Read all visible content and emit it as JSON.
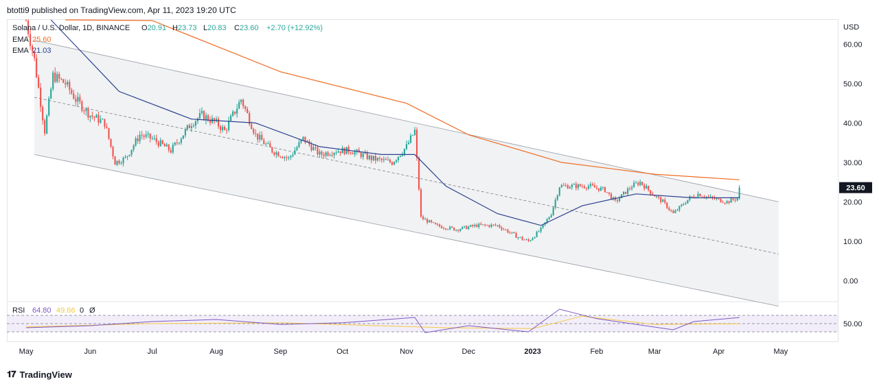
{
  "header": {
    "publisher_line": "btotti9 published on TradingView.com, Apr 11, 2023 19:20 UTC"
  },
  "legend": {
    "symbol": "Solana / U.S. Dollar, 1D, BINANCE",
    "ohlc": [
      {
        "key": "O",
        "value": "20.91"
      },
      {
        "key": "H",
        "value": "23.73"
      },
      {
        "key": "L",
        "value": "20.83"
      },
      {
        "key": "C",
        "value": "23.60"
      }
    ],
    "change": "+2.70 (+12.92%)",
    "indicators": [
      {
        "name": "EMA",
        "value": "25.60",
        "color": "#f06a20"
      },
      {
        "name": "EMA",
        "value": "21.03",
        "color": "#2a3f8f"
      }
    ],
    "rsi": {
      "name": "RSI",
      "value1": "64.80",
      "value2": "49.66",
      "value3": "0",
      "value4": "Ø"
    }
  },
  "colors": {
    "up": "#26a69a",
    "down": "#ef5350",
    "ema_long": "#f06a20",
    "ema_short": "#2a3f8f",
    "rsi_line": "#7e57c2",
    "rsi_ma": "#f5c842",
    "channel_fill": "#f0f2f3",
    "price_tag": "#131722"
  },
  "chart_data": [
    {
      "type": "candlestick",
      "currency": "USD",
      "price_axis": {
        "ticks": [
          "60.00",
          "50.00",
          "40.00",
          "30.00",
          "20.00",
          "10.00",
          "0.00"
        ],
        "ylim": [
          -5,
          66
        ]
      },
      "time_axis": {
        "labels": [
          "May",
          "Jun",
          "Jul",
          "Aug",
          "Sep",
          "Oct",
          "Nov",
          "Dec",
          "2023",
          "Feb",
          "Mar",
          "Apr",
          "May"
        ]
      },
      "last_price": "23.60",
      "series_close": [
        {
          "t": "2022-05-01",
          "v": 66
        },
        {
          "t": "2022-05-05",
          "v": 56
        },
        {
          "t": "2022-05-10",
          "v": 38
        },
        {
          "t": "2022-05-14",
          "v": 52
        },
        {
          "t": "2022-05-20",
          "v": 50
        },
        {
          "t": "2022-05-25",
          "v": 46
        },
        {
          "t": "2022-06-01",
          "v": 42
        },
        {
          "t": "2022-06-08",
          "v": 40
        },
        {
          "t": "2022-06-13",
          "v": 30
        },
        {
          "t": "2022-06-18",
          "v": 31
        },
        {
          "t": "2022-06-25",
          "v": 37
        },
        {
          "t": "2022-07-01",
          "v": 36
        },
        {
          "t": "2022-07-10",
          "v": 33
        },
        {
          "t": "2022-07-20",
          "v": 40
        },
        {
          "t": "2022-07-25",
          "v": 42
        },
        {
          "t": "2022-08-01",
          "v": 40
        },
        {
          "t": "2022-08-05",
          "v": 38
        },
        {
          "t": "2022-08-13",
          "v": 46
        },
        {
          "t": "2022-08-20",
          "v": 37
        },
        {
          "t": "2022-08-28",
          "v": 33
        },
        {
          "t": "2022-09-05",
          "v": 31
        },
        {
          "t": "2022-09-12",
          "v": 36
        },
        {
          "t": "2022-09-20",
          "v": 32
        },
        {
          "t": "2022-09-28",
          "v": 33
        },
        {
          "t": "2022-10-05",
          "v": 33
        },
        {
          "t": "2022-10-15",
          "v": 31
        },
        {
          "t": "2022-10-25",
          "v": 30
        },
        {
          "t": "2022-11-01",
          "v": 34
        },
        {
          "t": "2022-11-05",
          "v": 38
        },
        {
          "t": "2022-11-08",
          "v": 16
        },
        {
          "t": "2022-11-15",
          "v": 14
        },
        {
          "t": "2022-11-25",
          "v": 13
        },
        {
          "t": "2022-12-05",
          "v": 14
        },
        {
          "t": "2022-12-15",
          "v": 14
        },
        {
          "t": "2022-12-25",
          "v": 11
        },
        {
          "t": "2022-12-30",
          "v": 10
        },
        {
          "t": "2023-01-05",
          "v": 13
        },
        {
          "t": "2023-01-10",
          "v": 17
        },
        {
          "t": "2023-01-14",
          "v": 24
        },
        {
          "t": "2023-01-20",
          "v": 24
        },
        {
          "t": "2023-01-28",
          "v": 24
        },
        {
          "t": "2023-02-05",
          "v": 23
        },
        {
          "t": "2023-02-10",
          "v": 20
        },
        {
          "t": "2023-02-18",
          "v": 24
        },
        {
          "t": "2023-02-22",
          "v": 25
        },
        {
          "t": "2023-02-28",
          "v": 22
        },
        {
          "t": "2023-03-05",
          "v": 20
        },
        {
          "t": "2023-03-10",
          "v": 17
        },
        {
          "t": "2023-03-18",
          "v": 21
        },
        {
          "t": "2023-03-22",
          "v": 22
        },
        {
          "t": "2023-03-28",
          "v": 21
        },
        {
          "t": "2023-04-05",
          "v": 20
        },
        {
          "t": "2023-04-10",
          "v": 20.9
        },
        {
          "t": "2023-04-11",
          "v": 23.6
        }
      ],
      "ema_long": [
        {
          "t": "2022-05-20",
          "v": 76
        },
        {
          "t": "2022-07-01",
          "v": 66
        },
        {
          "t": "2022-09-01",
          "v": 53
        },
        {
          "t": "2022-11-01",
          "v": 45
        },
        {
          "t": "2022-12-01",
          "v": 37
        },
        {
          "t": "2023-01-15",
          "v": 30
        },
        {
          "t": "2023-03-01",
          "v": 27
        },
        {
          "t": "2023-04-11",
          "v": 25.6
        }
      ],
      "ema_short": [
        {
          "t": "2022-05-13",
          "v": 67
        },
        {
          "t": "2022-06-15",
          "v": 48
        },
        {
          "t": "2022-07-20",
          "v": 41
        },
        {
          "t": "2022-08-20",
          "v": 40
        },
        {
          "t": "2022-09-20",
          "v": 34
        },
        {
          "t": "2022-10-20",
          "v": 32
        },
        {
          "t": "2022-11-05",
          "v": 32
        },
        {
          "t": "2022-11-20",
          "v": 24
        },
        {
          "t": "2022-12-15",
          "v": 17
        },
        {
          "t": "2023-01-05",
          "v": 14
        },
        {
          "t": "2023-01-25",
          "v": 19
        },
        {
          "t": "2023-02-20",
          "v": 22
        },
        {
          "t": "2023-03-20",
          "v": 21
        },
        {
          "t": "2023-04-11",
          "v": 21.03
        }
      ],
      "rsi": {
        "ticks": [
          "50.00"
        ],
        "line": [
          {
            "t": "2022-05-01",
            "v": 40
          },
          {
            "t": "2022-06-01",
            "v": 45
          },
          {
            "t": "2022-07-01",
            "v": 55
          },
          {
            "t": "2022-08-01",
            "v": 60
          },
          {
            "t": "2022-09-01",
            "v": 48
          },
          {
            "t": "2022-10-01",
            "v": 52
          },
          {
            "t": "2022-11-05",
            "v": 65
          },
          {
            "t": "2022-11-10",
            "v": 28
          },
          {
            "t": "2022-12-01",
            "v": 45
          },
          {
            "t": "2022-12-30",
            "v": 30
          },
          {
            "t": "2023-01-14",
            "v": 85
          },
          {
            "t": "2023-02-01",
            "v": 62
          },
          {
            "t": "2023-03-10",
            "v": 35
          },
          {
            "t": "2023-03-20",
            "v": 55
          },
          {
            "t": "2023-04-11",
            "v": 64.8
          }
        ],
        "ma": [
          {
            "t": "2022-05-01",
            "v": 42
          },
          {
            "t": "2022-07-01",
            "v": 50
          },
          {
            "t": "2022-09-01",
            "v": 52
          },
          {
            "t": "2022-11-20",
            "v": 40
          },
          {
            "t": "2023-01-01",
            "v": 38
          },
          {
            "t": "2023-01-25",
            "v": 68
          },
          {
            "t": "2023-03-01",
            "v": 48
          },
          {
            "t": "2023-04-11",
            "v": 49.66
          }
        ]
      }
    }
  ]
}
